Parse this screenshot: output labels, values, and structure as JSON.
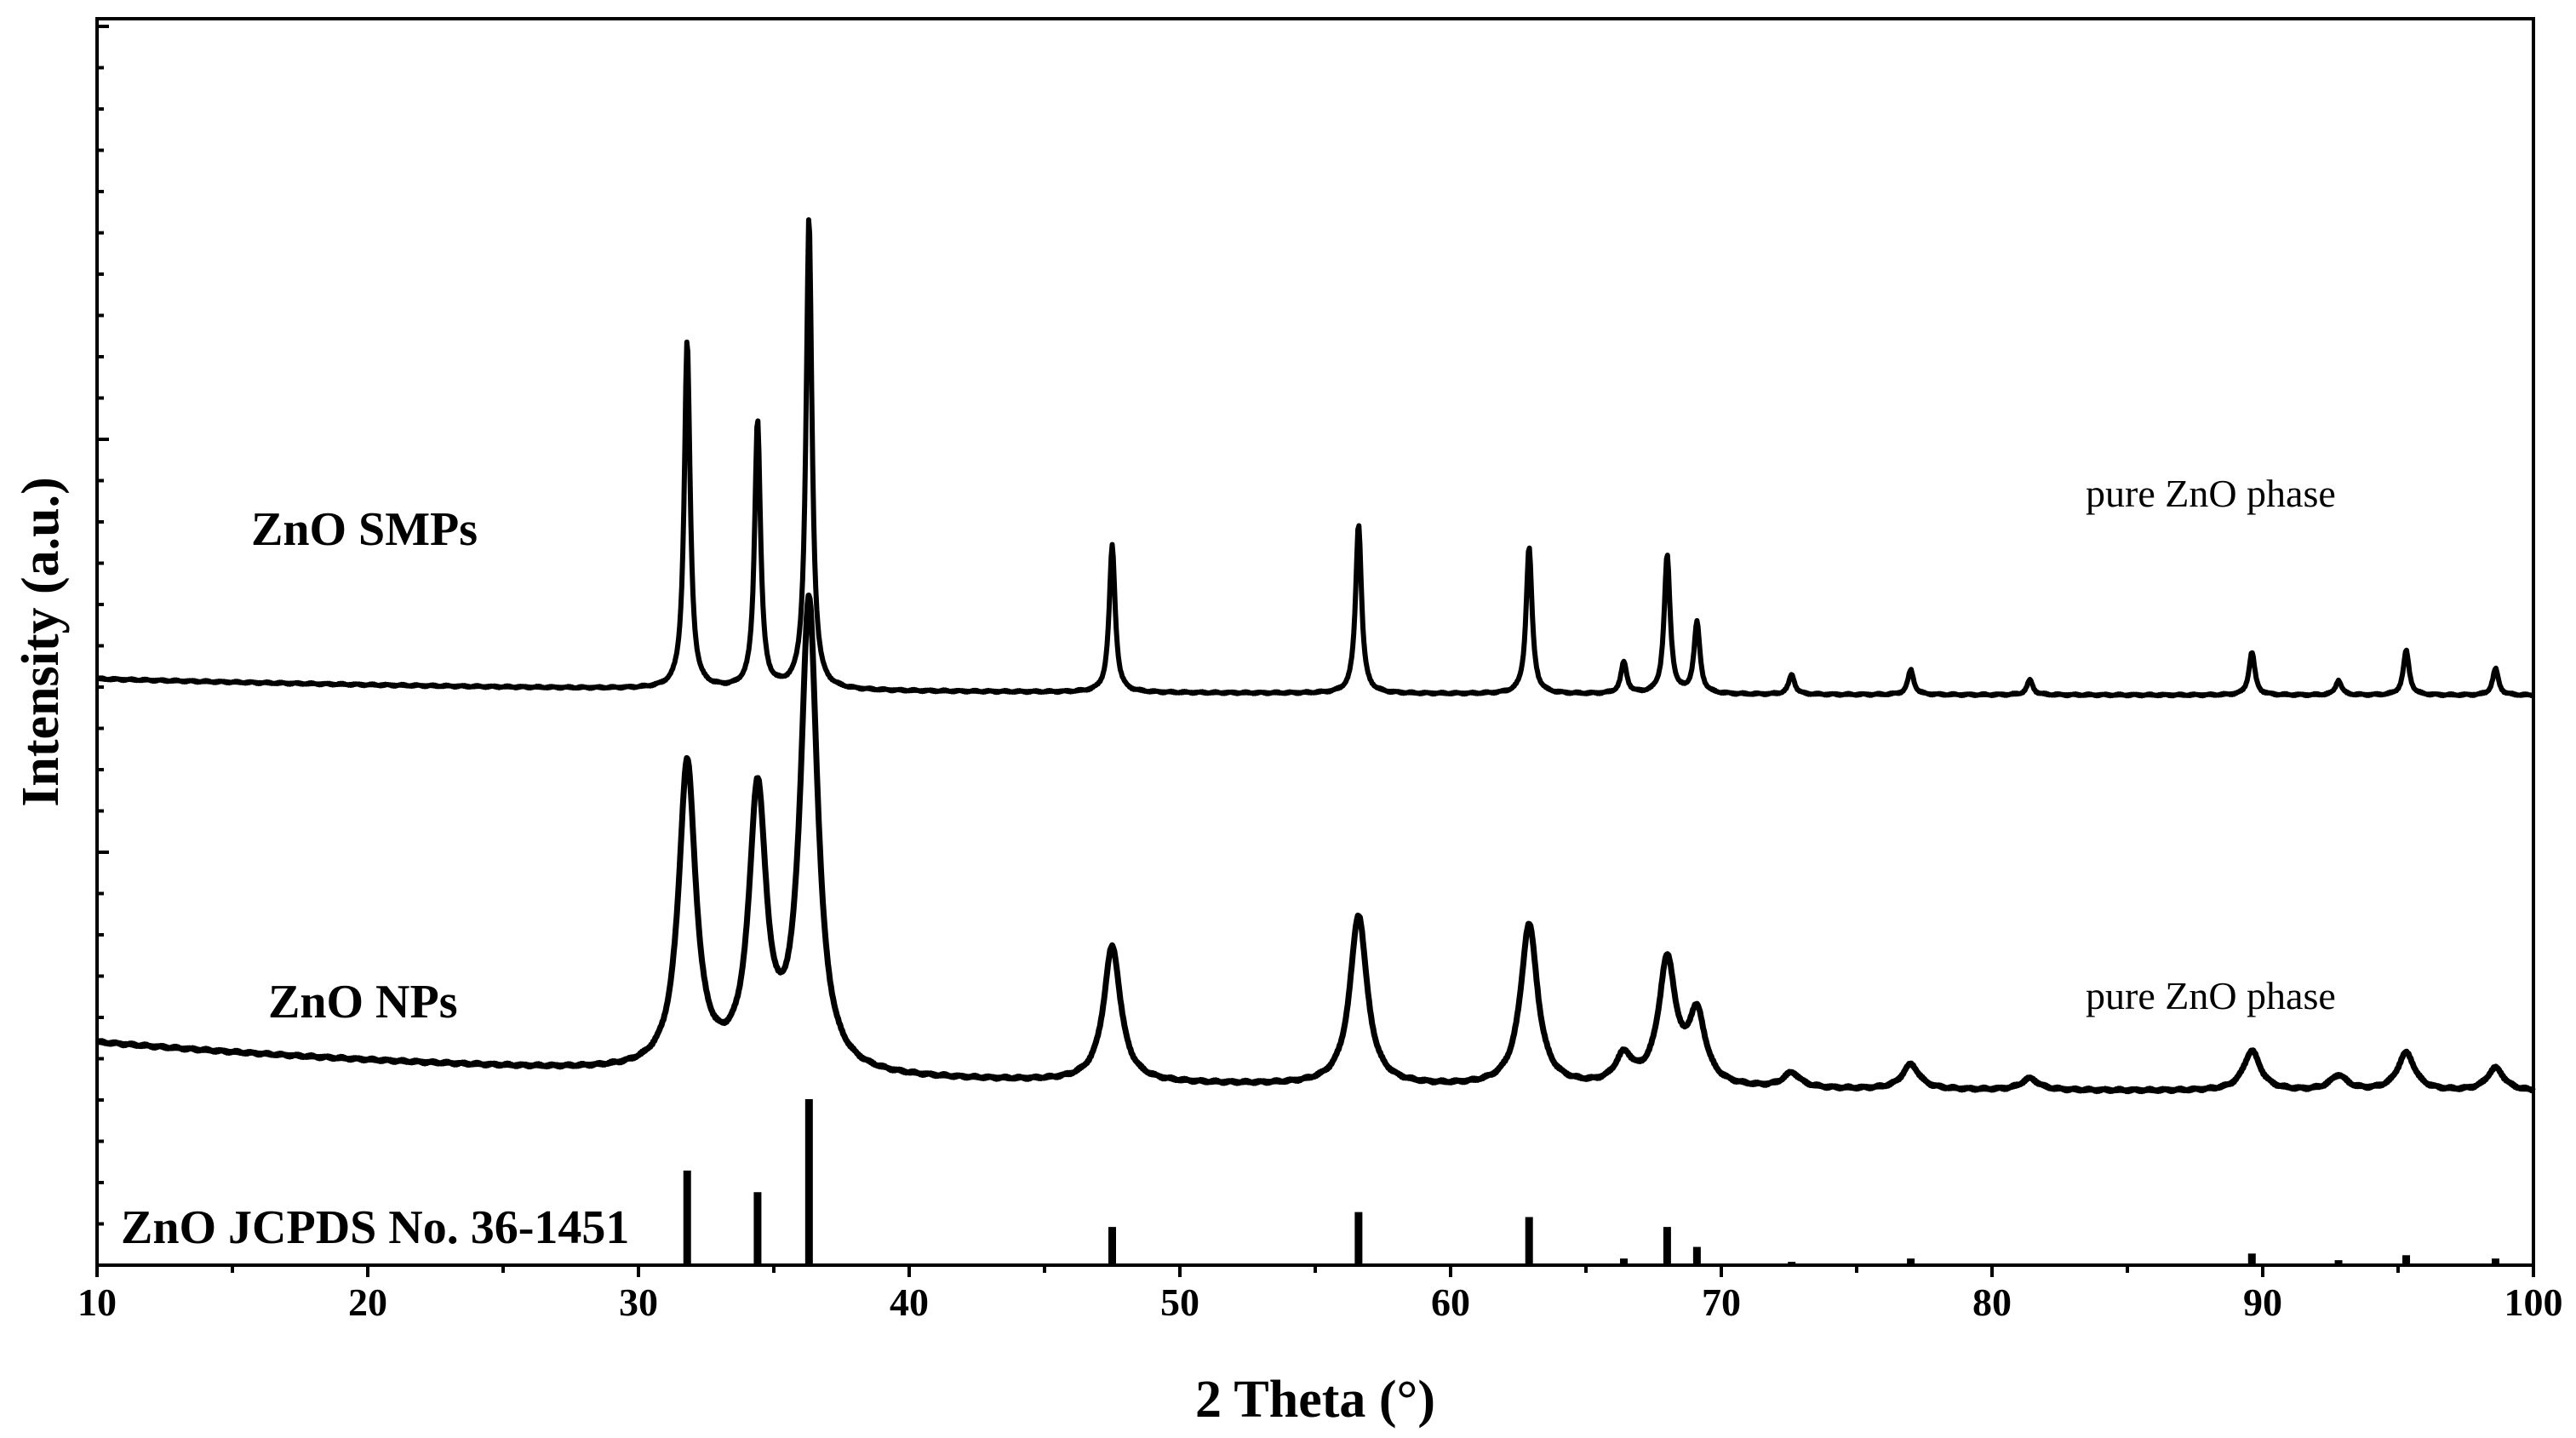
{
  "chart_data": {
    "type": "line",
    "xlabel": "2 Theta (°)",
    "ylabel": "Intensity (a.u.)",
    "xlim": [
      10,
      100
    ],
    "x_ticks": [
      "10",
      "20",
      "30",
      "40",
      "50",
      "60",
      "70",
      "80",
      "90",
      "100"
    ],
    "y_tick_labels_shown": false,
    "series": [
      {
        "name": "ZnO SMPs",
        "annotation": "pure ZnO phase",
        "baseline_start": 3.55,
        "baseline_end": 3.45,
        "peak_width": 0.13,
        "peaks": [
          {
            "x": 31.8,
            "y": 2.11
          },
          {
            "x": 34.4,
            "y": 1.63
          },
          {
            "x": 36.3,
            "y": 2.86
          },
          {
            "x": 47.5,
            "y": 0.89
          },
          {
            "x": 56.6,
            "y": 1.03
          },
          {
            "x": 62.9,
            "y": 0.89
          },
          {
            "x": 66.4,
            "y": 0.19
          },
          {
            "x": 68.0,
            "y": 0.84
          },
          {
            "x": 69.1,
            "y": 0.43
          },
          {
            "x": 72.6,
            "y": 0.12
          },
          {
            "x": 77.0,
            "y": 0.15
          },
          {
            "x": 81.4,
            "y": 0.09
          },
          {
            "x": 89.6,
            "y": 0.26
          },
          {
            "x": 92.8,
            "y": 0.09
          },
          {
            "x": 95.3,
            "y": 0.27
          },
          {
            "x": 98.6,
            "y": 0.16
          }
        ]
      },
      {
        "name": "ZnO NPs",
        "annotation": "pure ZnO phase",
        "baseline_start": 1.35,
        "baseline_end": 1.05,
        "peak_width": 0.38,
        "peaks": [
          {
            "x": 31.8,
            "y": 1.85
          },
          {
            "x": 34.4,
            "y": 1.66
          },
          {
            "x": 36.3,
            "y": 2.83
          },
          {
            "x": 47.5,
            "y": 0.82
          },
          {
            "x": 56.6,
            "y": 1.03
          },
          {
            "x": 62.9,
            "y": 0.98
          },
          {
            "x": 66.4,
            "y": 0.17
          },
          {
            "x": 68.0,
            "y": 0.75
          },
          {
            "x": 69.1,
            "y": 0.42
          },
          {
            "x": 72.6,
            "y": 0.09
          },
          {
            "x": 77.0,
            "y": 0.15
          },
          {
            "x": 81.4,
            "y": 0.07
          },
          {
            "x": 89.6,
            "y": 0.24
          },
          {
            "x": 92.8,
            "y": 0.09
          },
          {
            "x": 95.3,
            "y": 0.23
          },
          {
            "x": 98.6,
            "y": 0.14
          }
        ]
      },
      {
        "name": "ZnO JCPDS No. 36-1451",
        "type": "stick",
        "sticks": [
          {
            "x": 31.8,
            "y": 0.57
          },
          {
            "x": 34.4,
            "y": 0.44
          },
          {
            "x": 36.3,
            "y": 1.0
          },
          {
            "x": 47.5,
            "y": 0.23
          },
          {
            "x": 56.6,
            "y": 0.32
          },
          {
            "x": 62.9,
            "y": 0.29
          },
          {
            "x": 66.4,
            "y": 0.04
          },
          {
            "x": 68.0,
            "y": 0.23
          },
          {
            "x": 69.1,
            "y": 0.11
          },
          {
            "x": 72.6,
            "y": 0.02
          },
          {
            "x": 77.0,
            "y": 0.04
          },
          {
            "x": 81.4,
            "y": 0.01
          },
          {
            "x": 89.6,
            "y": 0.07
          },
          {
            "x": 92.8,
            "y": 0.03
          },
          {
            "x": 95.3,
            "y": 0.06
          },
          {
            "x": 98.6,
            "y": 0.04
          }
        ]
      }
    ]
  }
}
